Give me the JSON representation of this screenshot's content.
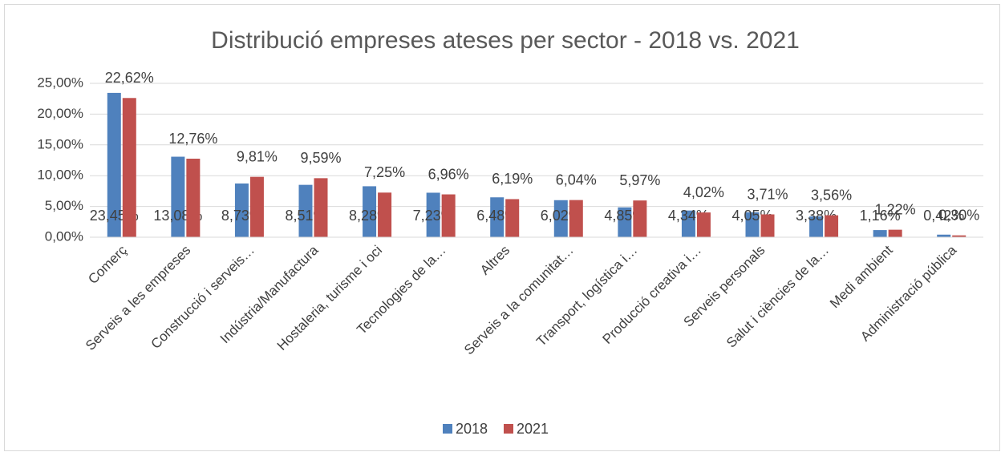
{
  "chart_data": {
    "type": "bar",
    "title": "Distribució empreses ateses per sector - 2018 vs. 2021",
    "categories": [
      "Comerç",
      "Serveis a les empreses",
      "Construcció i serveis…",
      "Indústria/Manufactura",
      "Hostaleria, turisme i oci",
      "Tecnologies de la…",
      "Altres",
      "Serveis a la comunitat…",
      "Transport, logística i…",
      "Producció creativa i…",
      "Serveis personals",
      "Salut i ciències de la…",
      "Medi ambient",
      "Administració pública"
    ],
    "series": [
      {
        "name": "2018",
        "color": "#4f81bd",
        "values": [
          23.45,
          13.08,
          8.73,
          8.51,
          8.28,
          7.23,
          6.48,
          6.02,
          4.85,
          4.34,
          4.05,
          3.38,
          1.16,
          0.42
        ],
        "value_labels": [
          "23,45%",
          "13,08%",
          "8,73%",
          "8,51%",
          "8,28%",
          "7,23%",
          "6,48%",
          "6,02%",
          "4,85%",
          "4,34%",
          "4,05%",
          "3,38%",
          "1,16%",
          "0,42%"
        ]
      },
      {
        "name": "2021",
        "color": "#c0504d",
        "values": [
          22.62,
          12.76,
          9.81,
          9.59,
          7.25,
          6.96,
          6.19,
          6.04,
          5.97,
          4.02,
          3.71,
          3.56,
          1.22,
          0.3
        ],
        "value_labels": [
          "22,62%",
          "12,76%",
          "9,81%",
          "9,59%",
          "7,25%",
          "6,96%",
          "6,19%",
          "6,04%",
          "5,97%",
          "4,02%",
          "3,71%",
          "3,56%",
          "1,22%",
          "0,30%"
        ]
      }
    ],
    "ylim": [
      0,
      25
    ],
    "yticks": [
      {
        "value": 0,
        "label": "0,00%"
      },
      {
        "value": 5,
        "label": "5,00%"
      },
      {
        "value": 10,
        "label": "10,00%"
      },
      {
        "value": 15,
        "label": "15,00%"
      },
      {
        "value": 20,
        "label": "20,00%"
      },
      {
        "value": 25,
        "label": "25,00%"
      }
    ],
    "grid": true,
    "legend": "bottom"
  }
}
